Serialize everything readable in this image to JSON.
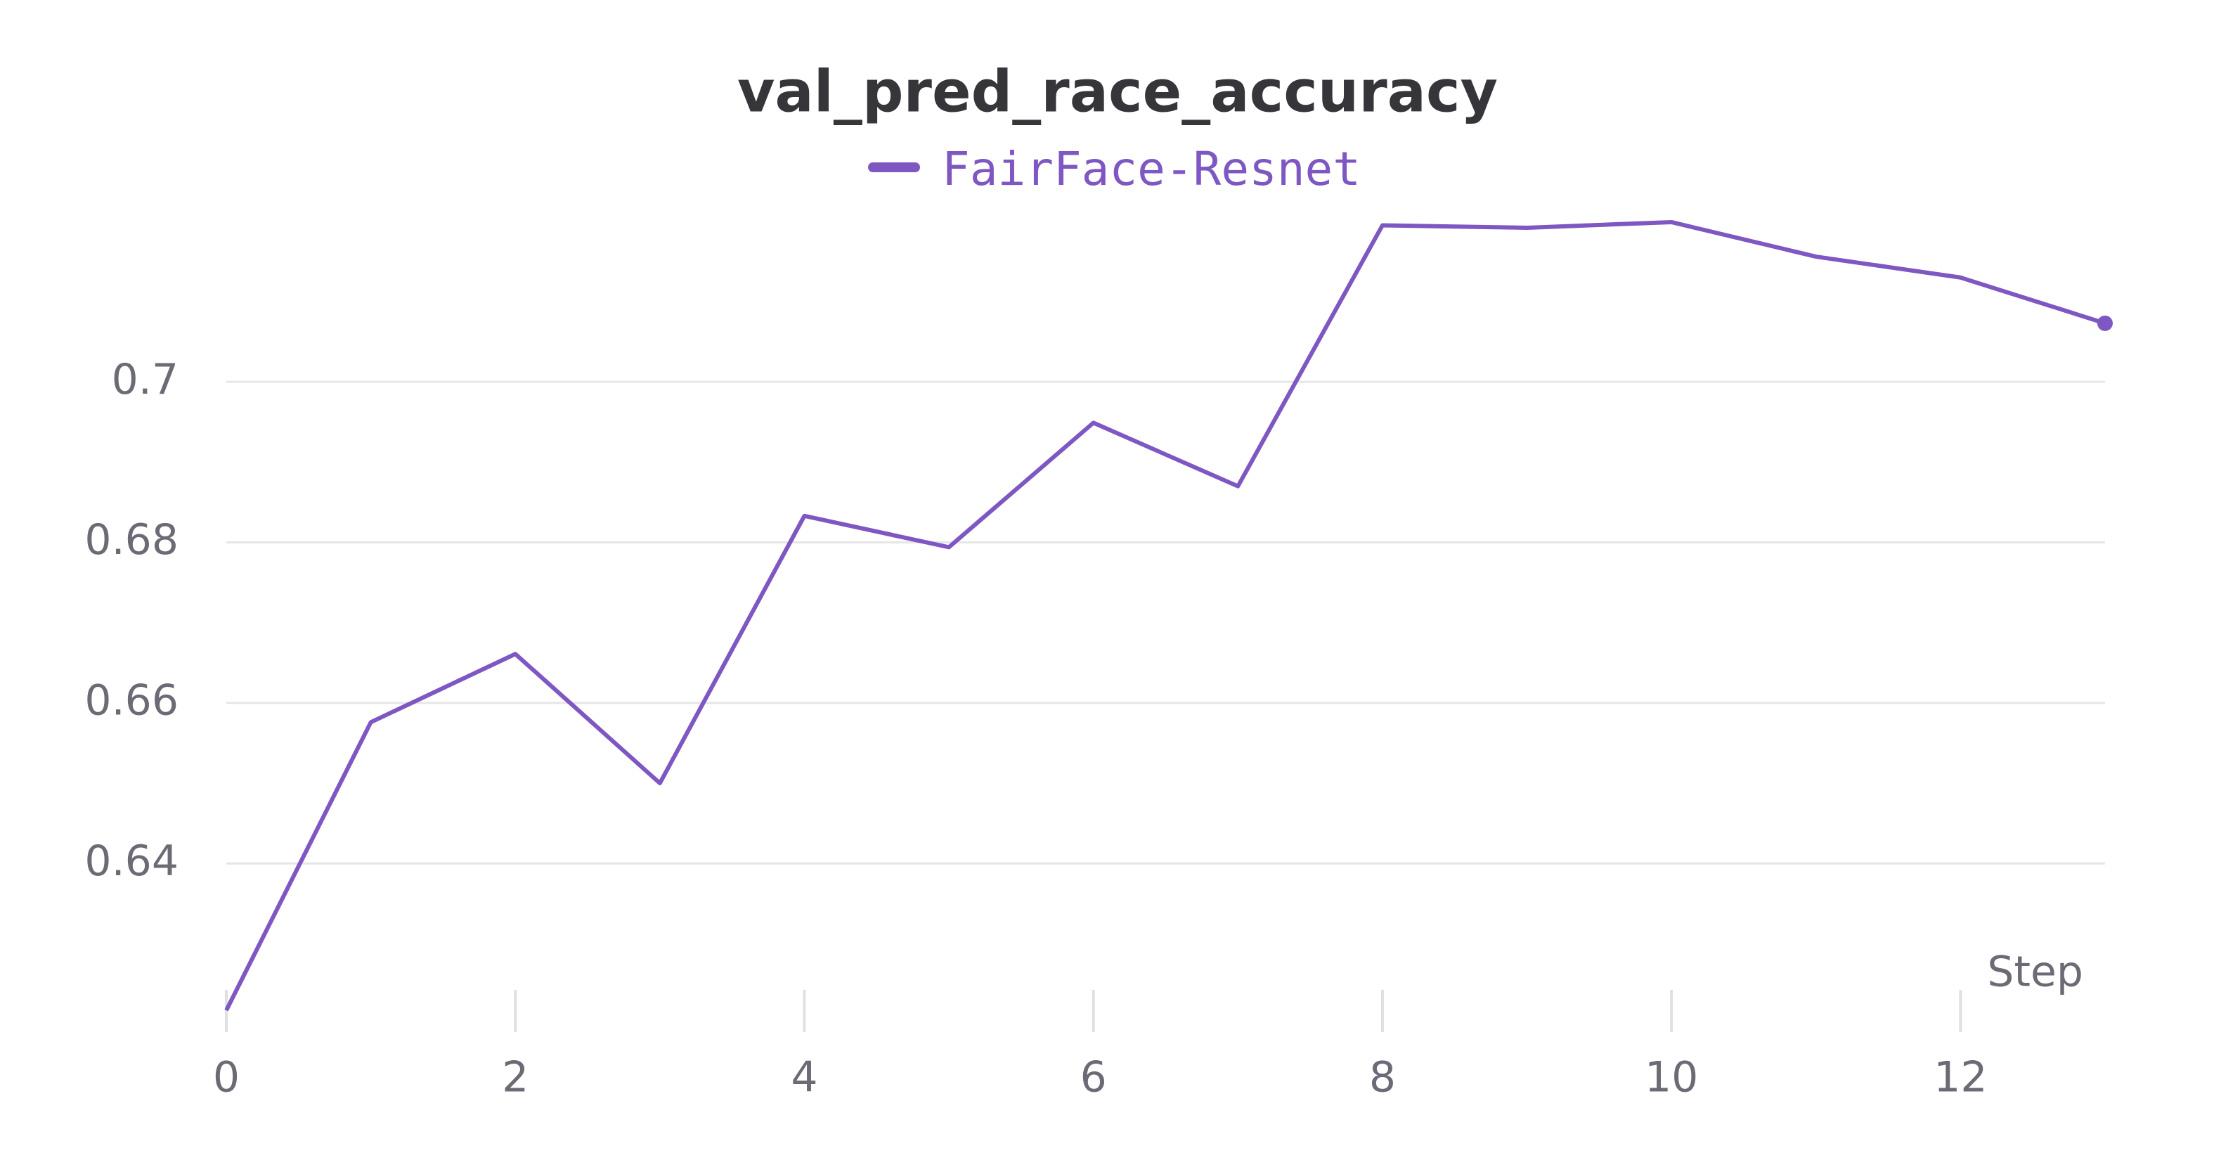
{
  "chart_data": {
    "type": "line",
    "title": "val_pred_race_accuracy",
    "x_label": "Step",
    "x": [
      0,
      1,
      2,
      3,
      4,
      5,
      6,
      7,
      8,
      9,
      10,
      11,
      12,
      13
    ],
    "series": [
      {
        "name": "FairFace-Resnet",
        "color": "#7e57c2",
        "values": [
          0.6217,
          0.6576,
          0.6661,
          0.65,
          0.6833,
          0.6794,
          0.6949,
          0.687,
          0.7195,
          0.7192,
          0.7199,
          0.7156,
          0.713,
          0.7073
        ]
      }
    ],
    "xlim": [
      0,
      13
    ],
    "xticks": [
      0,
      2,
      4,
      6,
      8,
      10,
      12
    ],
    "ylim": [
      0.619,
      0.7227
    ],
    "yticks": [
      0.64,
      0.66,
      0.68,
      0.7
    ],
    "grid": true,
    "end_marker": true
  }
}
